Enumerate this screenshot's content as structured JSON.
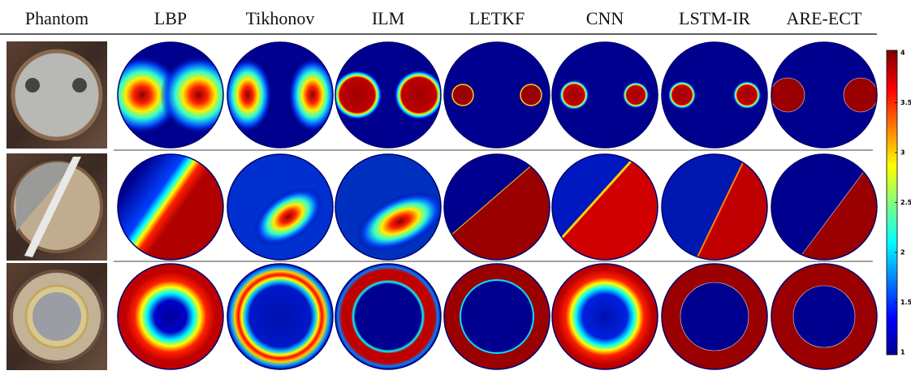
{
  "header": {
    "columns": [
      "Phantom",
      "LBP",
      "Tikhonov",
      "ILM",
      "LETKF",
      "CNN",
      "LSTM-IR",
      "ARE-ECT"
    ]
  },
  "colorbar": {
    "ticks": [
      "4",
      "3.5",
      "3",
      "2.5",
      "2",
      "1.5",
      "1"
    ]
  }
}
